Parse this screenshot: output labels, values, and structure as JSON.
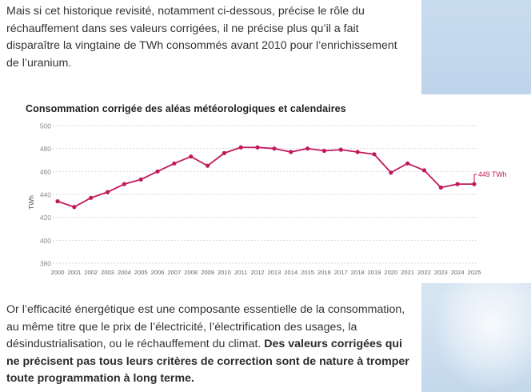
{
  "article": {
    "paragraph_1": "Mais si cet historique revisité, notamment ci-dessous, précise le rôle du réchauffement dans ses valeurs corrigées, il ne précise plus qu’il a fait disparaître la vingtaine de TWh consommés avant 2010 pour l’enrichissement de l’uranium.",
    "paragraph_2_normal": "Or l’efficacité énergétique est une composante essentielle de la consommation, au même titre que le prix de l’électricité, l’électrification des usages, la désindustrialisation, ou le réchauffement du climat. ",
    "paragraph_2_bold": "Des valeurs corrigées qui ne précisent pas tous leurs critères de correction sont de nature à tromper toute programmation à long terme."
  },
  "colors": {
    "line": "#c2185b",
    "text": "#333333",
    "grid": "#d9d9d9",
    "axis_text": "#8a8a8a",
    "sky": "#c9dcef"
  },
  "chart_data": {
    "type": "line",
    "title": "Consommation corrigée des aléas météorologiques et calendaires",
    "ylabel": "TWh",
    "xlabel": "",
    "ylim": [
      380,
      500
    ],
    "yticks": [
      380,
      400,
      420,
      440,
      460,
      480,
      500
    ],
    "grid": true,
    "categories": [
      "2000",
      "2001",
      "2002",
      "2003",
      "2004",
      "2005",
      "2006",
      "2007",
      "2008",
      "2009",
      "2010",
      "2011",
      "2012",
      "2013",
      "2014",
      "2015",
      "2016",
      "2017",
      "2018",
      "2019",
      "2020",
      "2021",
      "2022",
      "2023",
      "2024",
      "2025"
    ],
    "series": [
      {
        "values": [
          434,
          429,
          437,
          442,
          449,
          453,
          460,
          467,
          473,
          465,
          476,
          481,
          481,
          480,
          477,
          480,
          478,
          479,
          477,
          475,
          459,
          467,
          461,
          446,
          449,
          449
        ]
      }
    ],
    "annotations": [
      {
        "category": "2025",
        "text": "449 TWh"
      }
    ]
  }
}
